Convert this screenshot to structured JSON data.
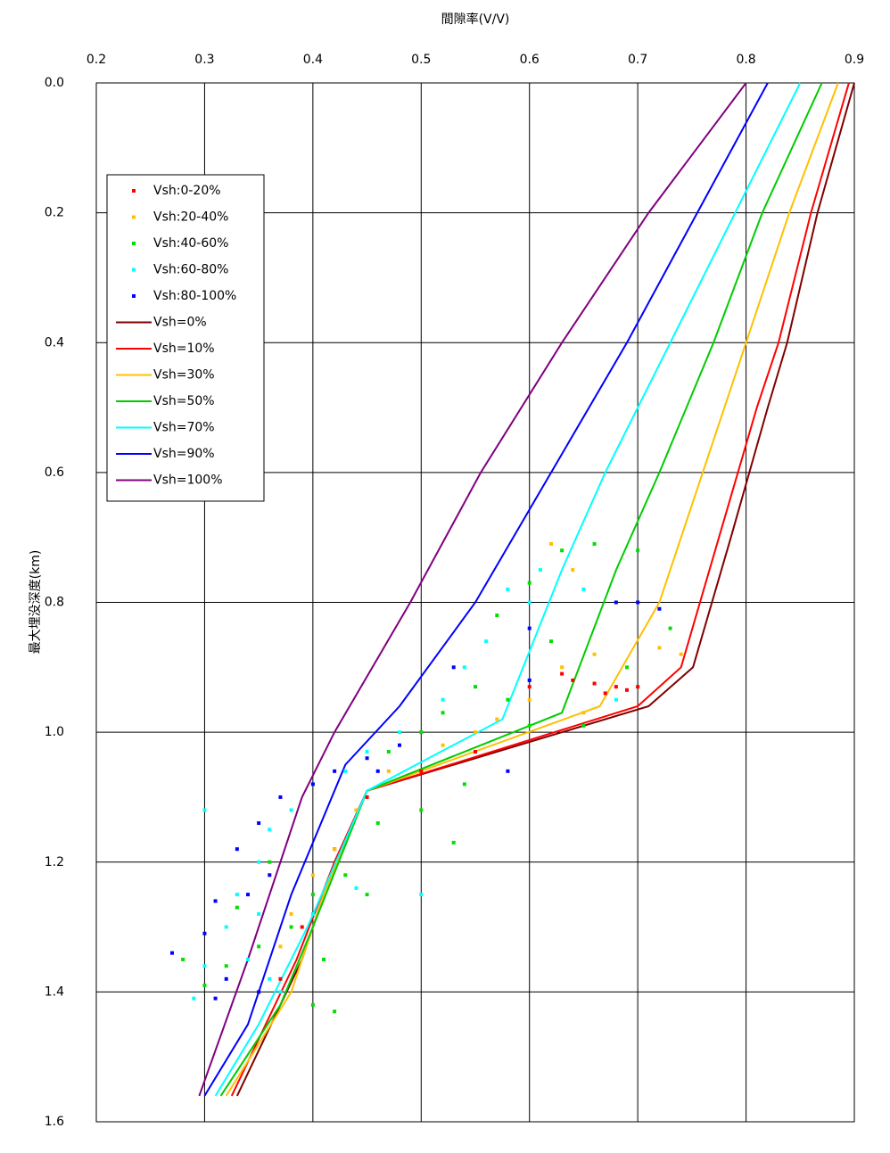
{
  "chart_data": {
    "type": "scatter",
    "x_label": "間隙率(V/V)",
    "y_label": "最大埋没深度(km)",
    "xlim": [
      0.2,
      0.9
    ],
    "xticks": [
      0.2,
      0.3,
      0.4,
      0.5,
      0.6,
      0.7,
      0.8,
      0.9
    ],
    "ylim": [
      0,
      1.6
    ],
    "yticks": [
      {
        "value": 0,
        "label": "0.0"
      },
      0.2,
      0.4,
      0.6,
      0.8,
      {
        "value": 1,
        "label": "1.0"
      },
      1.2,
      1.4,
      1.6
    ],
    "y_inverted": true,
    "x_axis_position": "top",
    "grid": true,
    "legend": "upper left",
    "series": [
      {
        "name": "Vsh:0-20%",
        "mode": "markers",
        "color": "#ff0000",
        "x": [
          0.64,
          0.66,
          0.68,
          0.69,
          0.7,
          0.67,
          0.55,
          0.5,
          0.45,
          0.42,
          0.39,
          0.37,
          0.6,
          0.63
        ],
        "y": [
          0.92,
          0.925,
          0.93,
          0.935,
          0.93,
          0.94,
          1.03,
          1.06,
          1.1,
          1.18,
          1.3,
          1.38,
          0.93,
          0.91
        ]
      },
      {
        "name": "Vsh:20-40%",
        "mode": "markers",
        "color": "#ffc000",
        "x": [
          0.62,
          0.64,
          0.68,
          0.66,
          0.63,
          0.6,
          0.57,
          0.52,
          0.47,
          0.44,
          0.42,
          0.4,
          0.38,
          0.37,
          0.72,
          0.74,
          0.65,
          0.55
        ],
        "y": [
          0.71,
          0.75,
          0.8,
          0.88,
          0.9,
          0.95,
          0.98,
          1.02,
          1.06,
          1.12,
          1.18,
          1.22,
          1.28,
          1.33,
          0.87,
          0.88,
          0.97,
          1.0
        ]
      },
      {
        "name": "Vsh:40-60%",
        "mode": "markers",
        "color": "#00e000",
        "x": [
          0.63,
          0.66,
          0.7,
          0.6,
          0.57,
          0.62,
          0.55,
          0.58,
          0.52,
          0.5,
          0.47,
          0.54,
          0.5,
          0.46,
          0.53,
          0.43,
          0.4,
          0.45,
          0.38,
          0.35,
          0.32,
          0.3,
          0.4,
          0.42,
          0.28,
          0.73,
          0.69,
          0.65,
          0.36,
          0.33,
          0.41,
          0.6
        ],
        "y": [
          0.72,
          0.71,
          0.72,
          0.77,
          0.82,
          0.86,
          0.93,
          0.95,
          0.97,
          1.0,
          1.03,
          1.08,
          1.12,
          1.14,
          1.17,
          1.22,
          1.25,
          1.25,
          1.3,
          1.33,
          1.36,
          1.39,
          1.42,
          1.43,
          1.35,
          0.84,
          0.9,
          0.99,
          1.2,
          1.27,
          1.35,
          0.99
        ]
      },
      {
        "name": "Vsh:60-80%",
        "mode": "markers",
        "color": "#00ffff",
        "x": [
          0.61,
          0.58,
          0.6,
          0.56,
          0.54,
          0.6,
          0.52,
          0.48,
          0.45,
          0.43,
          0.4,
          0.38,
          0.36,
          0.35,
          0.33,
          0.32,
          0.34,
          0.36,
          0.37,
          0.3,
          0.3,
          0.29,
          0.5,
          0.44,
          0.65,
          0.68,
          0.4,
          0.35
        ],
        "y": [
          0.75,
          0.78,
          0.8,
          0.86,
          0.9,
          0.92,
          0.95,
          1.0,
          1.03,
          1.06,
          1.08,
          1.12,
          1.15,
          1.2,
          1.25,
          1.3,
          1.35,
          1.38,
          1.4,
          1.36,
          1.12,
          1.41,
          1.25,
          1.24,
          0.78,
          0.95,
          1.28,
          1.28
        ]
      },
      {
        "name": "Vsh:80-100%",
        "mode": "markers",
        "color": "#0000ff",
        "x": [
          0.68,
          0.7,
          0.72,
          0.6,
          0.6,
          0.53,
          0.48,
          0.45,
          0.42,
          0.4,
          0.37,
          0.35,
          0.33,
          0.36,
          0.34,
          0.31,
          0.3,
          0.27,
          0.32,
          0.35,
          0.31,
          0.58,
          0.46
        ],
        "y": [
          0.8,
          0.8,
          0.81,
          0.84,
          0.92,
          0.9,
          1.02,
          1.04,
          1.06,
          1.08,
          1.1,
          1.14,
          1.18,
          1.22,
          1.25,
          1.26,
          1.31,
          1.34,
          1.38,
          1.4,
          1.41,
          1.06,
          1.06
        ]
      },
      {
        "name": "Vsh=0%",
        "mode": "lines",
        "color": "#800000",
        "x": [
          0.9,
          0.866,
          0.838,
          0.82,
          0.786,
          0.751,
          0.71,
          0.45,
          0.42,
          0.39,
          0.33
        ],
        "y": [
          0,
          0.2,
          0.4,
          0.5,
          0.7,
          0.9,
          0.96,
          1.09,
          1.2,
          1.35,
          1.56
        ]
      },
      {
        "name": "Vsh=10%",
        "mode": "lines",
        "color": "#ff0000",
        "x": [
          0.895,
          0.86,
          0.83,
          0.81,
          0.775,
          0.74,
          0.7,
          0.45,
          0.42,
          0.385,
          0.325
        ],
        "y": [
          0,
          0.2,
          0.4,
          0.5,
          0.7,
          0.9,
          0.96,
          1.09,
          1.2,
          1.35,
          1.56
        ]
      },
      {
        "name": "Vsh=30%",
        "mode": "lines",
        "color": "#ffc000",
        "x": [
          0.885,
          0.84,
          0.8,
          0.76,
          0.72,
          0.665,
          0.45,
          0.41,
          0.38,
          0.32
        ],
        "y": [
          0,
          0.2,
          0.4,
          0.6,
          0.8,
          0.96,
          1.09,
          1.25,
          1.4,
          1.56
        ]
      },
      {
        "name": "Vsh=50%",
        "mode": "lines",
        "color": "#00cc00",
        "x": [
          0.87,
          0.815,
          0.77,
          0.72,
          0.68,
          0.63,
          0.45,
          0.4,
          0.37,
          0.315
        ],
        "y": [
          0,
          0.2,
          0.4,
          0.6,
          0.75,
          0.97,
          1.09,
          1.3,
          1.42,
          1.56
        ]
      },
      {
        "name": "Vsh=70%",
        "mode": "lines",
        "color": "#00ffff",
        "x": [
          0.85,
          0.79,
          0.73,
          0.67,
          0.63,
          0.575,
          0.45,
          0.395,
          0.35,
          0.31
        ],
        "y": [
          0,
          0.2,
          0.4,
          0.6,
          0.75,
          0.98,
          1.09,
          1.3,
          1.45,
          1.56
        ]
      },
      {
        "name": "Vsh=90%",
        "mode": "lines",
        "color": "#0000ff",
        "x": [
          0.82,
          0.755,
          0.69,
          0.62,
          0.55,
          0.48,
          0.43,
          0.38,
          0.34,
          0.3
        ],
        "y": [
          0,
          0.2,
          0.4,
          0.6,
          0.8,
          0.96,
          1.05,
          1.25,
          1.45,
          1.56
        ]
      },
      {
        "name": "Vsh=100%",
        "mode": "lines",
        "color": "#800080",
        "x": [
          0.8,
          0.71,
          0.63,
          0.555,
          0.49,
          0.42,
          0.39,
          0.34,
          0.295
        ],
        "y": [
          0,
          0.2,
          0.4,
          0.6,
          0.8,
          1.0,
          1.1,
          1.35,
          1.56
        ]
      }
    ]
  }
}
